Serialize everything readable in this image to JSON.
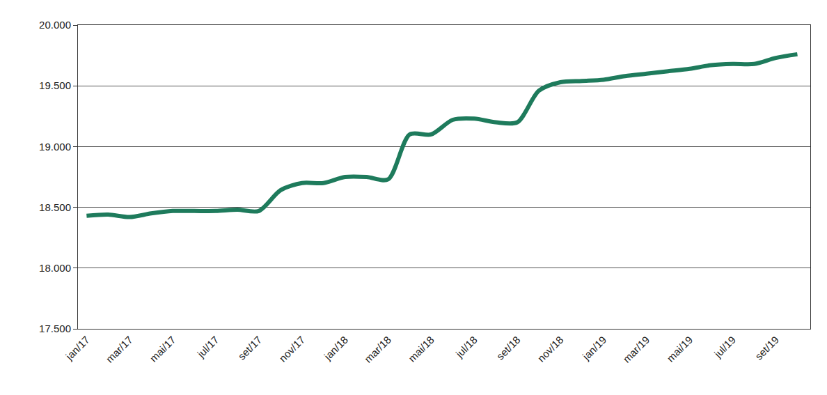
{
  "chart_data": {
    "type": "line",
    "categories": [
      "jan/17",
      null,
      "mar/17",
      null,
      "mai/17",
      null,
      "jul/17",
      null,
      "set/17",
      null,
      "nov/17",
      null,
      "jan/18",
      null,
      "mar/18",
      null,
      "mai/18",
      null,
      "jul/18",
      null,
      "set/18",
      null,
      "nov/18",
      null,
      "jan/19",
      null,
      "mar/19",
      null,
      "mai/19",
      null,
      "jul/19",
      null,
      "set/19",
      null
    ],
    "values": [
      18430,
      18440,
      18420,
      18450,
      18470,
      18470,
      18470,
      18480,
      18470,
      18640,
      18700,
      18700,
      18750,
      18750,
      18730,
      19100,
      19100,
      19220,
      19230,
      19200,
      19200,
      19460,
      19530,
      19540,
      19550,
      19580,
      19600,
      19620,
      19640,
      19670,
      19680,
      19680,
      19730,
      19760
    ],
    "color": "#1e7b5c",
    "ylim": [
      17500,
      20000
    ],
    "yticks": [
      {
        "value": 17500,
        "label": "17.500"
      },
      {
        "value": 18000,
        "label": "18.000"
      },
      {
        "value": 18500,
        "label": "18.500"
      },
      {
        "value": 19000,
        "label": "19.000"
      },
      {
        "value": 19500,
        "label": "19.500"
      },
      {
        "value": 20000,
        "label": "20.000"
      }
    ],
    "grid": true
  }
}
